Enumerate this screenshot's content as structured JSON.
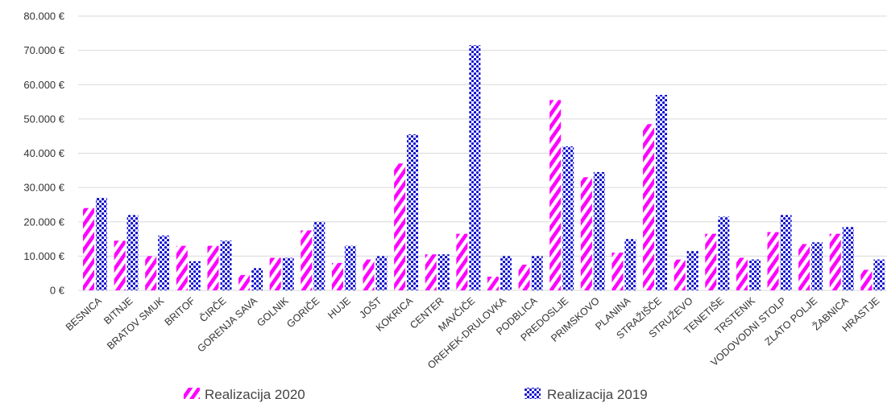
{
  "chart_data": {
    "type": "bar",
    "title": "",
    "xlabel": "",
    "ylabel": "",
    "ylim": [
      0,
      80000
    ],
    "y_ticks": [
      0,
      10000,
      20000,
      30000,
      40000,
      50000,
      60000,
      70000,
      80000
    ],
    "y_tick_labels": [
      "0 €",
      "10.000 €",
      "20.000 €",
      "30.000 €",
      "40.000 €",
      "50.000 €",
      "60.000 €",
      "70.000 €",
      "80.000 €"
    ],
    "grid": true,
    "legend_position": "bottom",
    "categories": [
      "BESNICA",
      "BITNJE",
      "BRATOV SMUK",
      "BRITOF",
      "ČIRČE",
      "GORENJA SAVA",
      "GOLNIK",
      "GORIČE",
      "HUJE",
      "JOŠT",
      "KOKRICA",
      "CENTER",
      "MAVČIČE",
      "OREHEK-DRULOVKA",
      "PODBLICA",
      "PREDOSLJE",
      "PRIMSKOVO",
      "PLANINA",
      "STRAŽIŠČE",
      "STRUŽEVO",
      "TENETIŠE",
      "TRSTENIK",
      "VODOVODNI STOLP",
      "ZLATO POLJE",
      "ŽABNICA",
      "HRASTJE"
    ],
    "series": [
      {
        "name": "Realizacija 2020",
        "color": "#ff00ff",
        "pattern": "diagonal-stripes",
        "values": [
          24000,
          14500,
          10000,
          13000,
          13000,
          4500,
          9500,
          17500,
          8000,
          9000,
          37000,
          10500,
          16500,
          4000,
          7500,
          55500,
          33000,
          11000,
          48500,
          9000,
          16500,
          9500,
          17000,
          13500,
          16500,
          6000
        ]
      },
      {
        "name": "Realizacija 2019",
        "color": "#0000cc",
        "pattern": "dots",
        "values": [
          27000,
          22000,
          16000,
          8500,
          14500,
          6500,
          9500,
          20000,
          13000,
          10000,
          45500,
          10500,
          71500,
          10000,
          10000,
          42000,
          34500,
          15000,
          57000,
          11500,
          21500,
          9000,
          22000,
          14000,
          18500,
          9000
        ]
      }
    ]
  }
}
